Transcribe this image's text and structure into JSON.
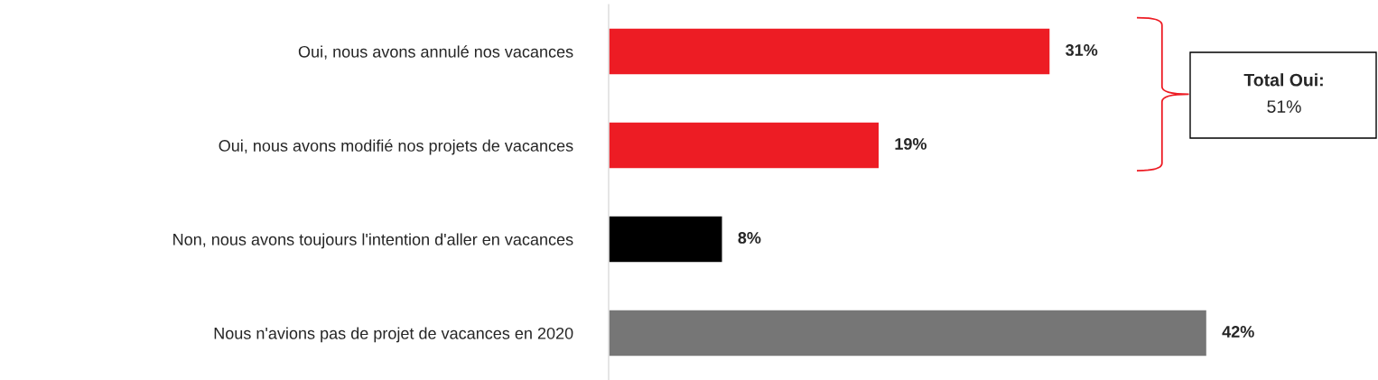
{
  "chart_data": {
    "type": "bar",
    "orientation": "horizontal",
    "categories": [
      "Oui, nous avons annulé nos vacances",
      "Oui, nous avons modifié nos projets de vacances",
      "Non, nous avons toujours l'intention d'aller en vacances",
      "Nous n'avions pas de projet de vacances en 2020"
    ],
    "values": [
      31,
      19,
      8,
      42
    ],
    "colors": [
      "#ed1c24",
      "#ed1c24",
      "#000000",
      "#767676"
    ],
    "value_labels": [
      "31%",
      "19%",
      "8%",
      "42%"
    ],
    "annotations": [
      "Total Oui:\n51%"
    ],
    "grid": false,
    "legend": false
  }
}
